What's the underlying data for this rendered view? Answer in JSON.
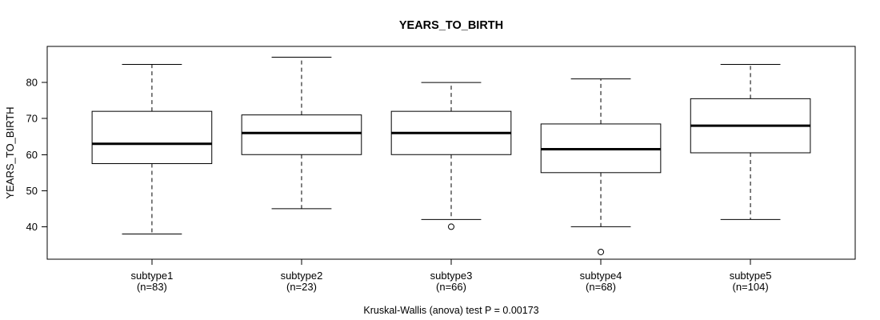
{
  "chart_data": {
    "type": "boxplot",
    "title": "YEARS_TO_BIRTH",
    "ylabel": "YEARS_TO_BIRTH",
    "xlabel": "",
    "annotation": "Kruskal-Wallis (anova) test P = 0.00173",
    "ylim": [
      31,
      90
    ],
    "yticks": [
      40,
      50,
      60,
      70,
      80
    ],
    "grid": false,
    "legend": null,
    "categories": [
      "subtype1",
      "subtype2",
      "subtype3",
      "subtype4",
      "subtype5"
    ],
    "counts": [
      "(n=83)",
      "(n=23)",
      "(n=66)",
      "(n=68)",
      "(n=104)"
    ],
    "series": [
      {
        "name": "subtype1",
        "n": 83,
        "low": 38,
        "q1": 57.5,
        "median": 63,
        "q3": 72,
        "high": 85,
        "outliers": []
      },
      {
        "name": "subtype2",
        "n": 23,
        "low": 45,
        "q1": 60,
        "median": 66,
        "q3": 71,
        "high": 87,
        "outliers": []
      },
      {
        "name": "subtype3",
        "n": 66,
        "low": 42,
        "q1": 60,
        "median": 66,
        "q3": 72,
        "high": 80,
        "outliers": [
          40
        ]
      },
      {
        "name": "subtype4",
        "n": 68,
        "low": 40,
        "q1": 55,
        "median": 61.5,
        "q3": 68.5,
        "high": 81,
        "outliers": [
          33
        ]
      },
      {
        "name": "subtype5",
        "n": 104,
        "low": 42,
        "q1": 60.5,
        "median": 68,
        "q3": 75.5,
        "high": 85,
        "outliers": []
      }
    ],
    "colors": {
      "line": "#000000",
      "box_fill": "#ffffff",
      "background": "#ffffff"
    }
  }
}
